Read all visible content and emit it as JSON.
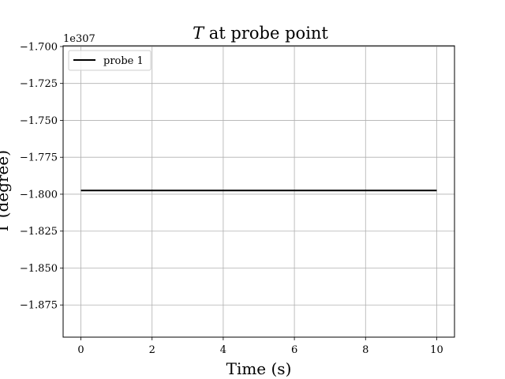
{
  "chart_data": {
    "type": "line",
    "title_var": "T",
    "title_rest": " at probe point",
    "xlabel": "Time (s)",
    "ylabel": "T (degree)",
    "offset_text": "1e307",
    "xlim": [
      -0.5,
      10.5
    ],
    "ylim": [
      -1.8968,
      -1.6995
    ],
    "x_ticks": [
      0,
      2,
      4,
      6,
      8,
      10
    ],
    "x_tick_labels": [
      "0",
      "2",
      "4",
      "6",
      "8",
      "10"
    ],
    "y_ticks": [
      -1.7,
      -1.725,
      -1.75,
      -1.775,
      -1.8,
      -1.825,
      -1.85,
      -1.875
    ],
    "y_tick_labels": [
      "−1.700",
      "−1.725",
      "−1.750",
      "−1.775",
      "−1.800",
      "−1.825",
      "−1.850",
      "−1.875"
    ],
    "grid": true,
    "legend_position": "top-left",
    "series": [
      {
        "name": "probe 1",
        "color": "#000000",
        "x": [
          0,
          10
        ],
        "y": [
          -1.7975,
          -1.7975
        ]
      }
    ]
  }
}
